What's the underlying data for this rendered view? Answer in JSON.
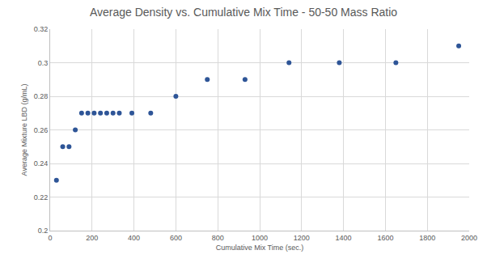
{
  "chart_data": {
    "type": "scatter",
    "title": "Average Density vs. Cumulative Mix Time - 50-50 Mass Ratio",
    "x_label": "Cumulative Mix Time (sec.)",
    "y_label": "Average Mixture LBD (g/mL)",
    "x": [
      30,
      60,
      90,
      120,
      150,
      180,
      210,
      240,
      270,
      300,
      330,
      390,
      480,
      600,
      750,
      930,
      1140,
      1380,
      1650,
      1950
    ],
    "values": [
      0.23,
      0.25,
      0.25,
      0.26,
      0.27,
      0.27,
      0.27,
      0.27,
      0.27,
      0.27,
      0.27,
      0.27,
      0.27,
      0.28,
      0.29,
      0.29,
      0.3,
      0.3,
      0.3,
      0.31
    ],
    "color": "#2e5597",
    "marker": "circle",
    "xlim": [
      0,
      2000
    ],
    "xticks": [
      0,
      200,
      400,
      600,
      800,
      1000,
      1200,
      1400,
      1600,
      1800,
      2000
    ],
    "ylim": [
      0.2,
      0.32
    ],
    "yticks": [
      0.2,
      0.22,
      0.24,
      0.26,
      0.28,
      0.3,
      0.32
    ],
    "grid": true
  }
}
